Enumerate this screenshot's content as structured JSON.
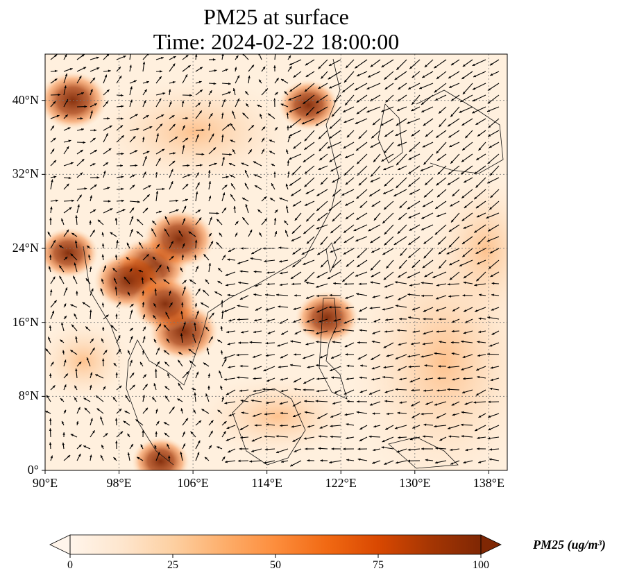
{
  "title": {
    "line1": "PM25 at surface",
    "line2": "Time: 2024-02-22 18:00:00"
  },
  "map": {
    "lon_range": [
      90,
      140
    ],
    "lat_range": [
      0,
      45
    ],
    "lat_ticks": [
      {
        "value": 0,
        "label": "0°"
      },
      {
        "value": 8,
        "label": "8°N"
      },
      {
        "value": 16,
        "label": "16°N"
      },
      {
        "value": 24,
        "label": "24°N"
      },
      {
        "value": 32,
        "label": "32°N"
      },
      {
        "value": 40,
        "label": "40°N"
      }
    ],
    "lon_ticks": [
      {
        "value": 90,
        "label": "90°E"
      },
      {
        "value": 98,
        "label": "98°E"
      },
      {
        "value": 106,
        "label": "106°E"
      },
      {
        "value": 114,
        "label": "114°E"
      },
      {
        "value": 122,
        "label": "122°E"
      },
      {
        "value": 130,
        "label": "130°E"
      },
      {
        "value": 138,
        "label": "138°E"
      }
    ],
    "gridlines": true
  },
  "colorbar": {
    "title": "PM25 (ug/m³)",
    "min": 0,
    "max": 100,
    "ticks": [
      "0",
      "25",
      "50",
      "75",
      "100"
    ],
    "extend": "both",
    "colors": [
      "#fff5eb",
      "#fee6ce",
      "#fdd0a2",
      "#fdae6b",
      "#fd8d3c",
      "#f16913",
      "#d94801",
      "#a63603",
      "#7f2704"
    ]
  },
  "pm25_hotspots": [
    {
      "lon": 101.5,
      "lat": 22.0,
      "value": 90
    },
    {
      "lon": 99.0,
      "lat": 20.5,
      "value": 85
    },
    {
      "lon": 104.5,
      "lat": 25.0,
      "value": 88
    },
    {
      "lon": 105.0,
      "lat": 15.0,
      "value": 85
    },
    {
      "lon": 103.0,
      "lat": 18.0,
      "value": 80
    },
    {
      "lon": 92.5,
      "lat": 23.5,
      "value": 70
    },
    {
      "lon": 93.0,
      "lat": 40.0,
      "value": 85
    },
    {
      "lon": 118.5,
      "lat": 39.5,
      "value": 70
    },
    {
      "lon": 120.5,
      "lat": 16.5,
      "value": 75
    },
    {
      "lon": 102.5,
      "lat": 1.0,
      "value": 65
    }
  ],
  "wind": {
    "east_sea_direction_deg": 200,
    "description": "northeasterly monsoon flow"
  }
}
